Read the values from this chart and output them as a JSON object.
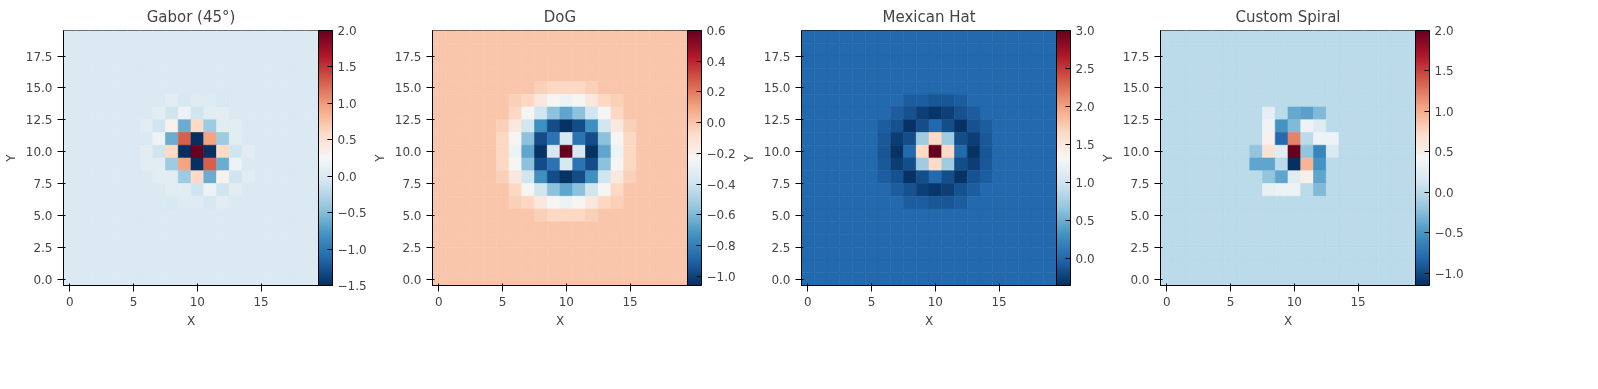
{
  "chart_data": [
    {
      "type": "heatmap",
      "title": "Gabor (45°)",
      "xlabel": "X",
      "ylabel": "Y",
      "xlim": [
        -0.5,
        19.5
      ],
      "ylim": [
        -0.5,
        19.5
      ],
      "xticks": [
        0,
        5,
        10,
        15
      ],
      "yticks": [
        {
          "value": 0,
          "label": "0.0"
        },
        2.5,
        {
          "value": 5,
          "label": "5.0"
        },
        7.5,
        {
          "value": 10,
          "label": "10.0"
        },
        12.5,
        {
          "value": 15,
          "label": "15.0"
        },
        17.5
      ],
      "clim": [
        -1.5,
        2.0
      ],
      "cticks": [
        {
          "value": -1.5,
          "label": "−1.5"
        },
        {
          "value": -1.0,
          "label": "−1.0"
        },
        {
          "value": -0.5,
          "label": "−0.5"
        },
        {
          "value": 0.0,
          "label": "0.0"
        },
        0.5,
        {
          "value": 1.0,
          "label": "1.0"
        },
        1.5,
        {
          "value": 2.0,
          "label": "2.0"
        }
      ],
      "cells": [
        [
          0,
          0,
          0,
          0,
          0,
          0,
          0,
          0,
          0,
          0,
          0,
          0,
          0,
          0,
          0,
          0,
          0,
          0,
          0,
          0
        ],
        [
          0,
          0,
          0,
          0,
          0,
          0,
          0,
          0,
          0,
          0,
          0,
          0,
          0,
          0,
          0,
          0,
          0,
          0,
          0,
          0
        ],
        [
          0,
          0,
          0,
          0,
          0,
          0,
          0,
          0,
          0,
          0,
          0,
          0,
          0,
          0,
          0,
          0,
          0,
          0,
          0,
          0
        ],
        [
          0,
          0,
          0,
          0,
          0,
          0,
          0,
          0,
          0,
          0,
          0,
          0,
          0,
          0,
          0,
          0,
          0,
          0,
          0,
          0
        ],
        [
          0,
          0,
          0,
          0,
          0,
          0,
          0,
          0,
          0,
          0,
          0,
          0,
          0,
          0,
          0,
          0,
          0,
          0,
          0,
          0
        ],
        [
          0,
          0,
          0,
          0,
          0,
          0,
          0,
          0,
          0.05,
          -0.05,
          0.03,
          0.03,
          -0.03,
          0,
          0,
          0,
          0,
          0,
          0,
          0
        ],
        [
          0,
          0,
          0,
          0,
          0,
          0,
          0,
          0.05,
          -0.1,
          0.15,
          -0.1,
          0.05,
          0.06,
          -0.02,
          0,
          0,
          0,
          0,
          0,
          0
        ],
        [
          0,
          0,
          0,
          0,
          0,
          0,
          0.05,
          -0.1,
          0.32,
          -0.62,
          0.6,
          -0.38,
          0.05,
          0.05,
          -0.02,
          0,
          0,
          0,
          0,
          0
        ],
        [
          0,
          0,
          0,
          0,
          0,
          0,
          -0.02,
          0.15,
          -0.62,
          1.3,
          -1.5,
          0.95,
          -0.38,
          0.05,
          0,
          0,
          0,
          0,
          0,
          0
        ],
        [
          0,
          0,
          0,
          0,
          0,
          0,
          0.05,
          -0.1,
          0.6,
          -1.5,
          2.0,
          -1.5,
          0.6,
          -0.1,
          0.05,
          0,
          0,
          0,
          0,
          0
        ],
        [
          0,
          0,
          0,
          0,
          0,
          0,
          0.05,
          0.05,
          -0.38,
          0.95,
          -1.5,
          1.3,
          -0.62,
          0.15,
          -0.02,
          0,
          0,
          0,
          0,
          0
        ],
        [
          0,
          0,
          0,
          0,
          0,
          0,
          -0.02,
          0.05,
          0.05,
          -0.38,
          0.6,
          -0.62,
          0.32,
          -0.1,
          0.05,
          0,
          0,
          0,
          0,
          0
        ],
        [
          0,
          0,
          0,
          0,
          0,
          0,
          0,
          -0.02,
          0.05,
          0.05,
          -0.1,
          0.15,
          -0.1,
          0.05,
          0,
          0,
          0,
          0,
          0,
          0
        ],
        [
          0,
          0,
          0,
          0,
          0,
          0,
          0,
          0,
          -0.03,
          0.03,
          0.03,
          -0.05,
          0.05,
          0,
          0,
          0,
          0,
          0,
          0,
          0
        ],
        [
          0,
          0,
          0,
          0,
          0,
          0,
          0,
          0,
          0,
          0,
          0,
          0,
          0,
          0,
          0,
          0,
          0,
          0,
          0,
          0
        ],
        [
          0,
          0,
          0,
          0,
          0,
          0,
          0,
          0,
          0,
          0,
          0,
          0,
          0,
          0,
          0,
          0,
          0,
          0,
          0,
          0
        ],
        [
          0,
          0,
          0,
          0,
          0,
          0,
          0,
          0,
          0,
          0,
          0,
          0,
          0,
          0,
          0,
          0,
          0,
          0,
          0,
          0
        ],
        [
          0,
          0,
          0,
          0,
          0,
          0,
          0,
          0,
          0,
          0,
          0,
          0,
          0,
          0,
          0,
          0,
          0,
          0,
          0,
          0
        ],
        [
          0,
          0,
          0,
          0,
          0,
          0,
          0,
          0,
          0,
          0,
          0,
          0,
          0,
          0,
          0,
          0,
          0,
          0,
          0,
          0
        ],
        [
          0,
          0,
          0,
          0,
          0,
          0,
          0,
          0,
          0,
          0,
          0,
          0,
          0,
          0,
          0,
          0,
          0,
          0,
          0,
          0
        ]
      ]
    },
    {
      "type": "heatmap",
      "title": "DoG",
      "xlabel": "X",
      "ylabel": "Y",
      "xlim": [
        -0.5,
        19.5
      ],
      "ylim": [
        -0.5,
        19.5
      ],
      "xticks": [
        0,
        5,
        10,
        15
      ],
      "yticks": [
        {
          "value": 0,
          "label": "0.0"
        },
        2.5,
        {
          "value": 5,
          "label": "5.0"
        },
        7.5,
        {
          "value": 10,
          "label": "10.0"
        },
        12.5,
        {
          "value": 15,
          "label": "15.0"
        },
        17.5
      ],
      "clim": [
        -1.06,
        0.6
      ],
      "cticks": [
        {
          "value": -1.0,
          "label": "−1.0"
        },
        {
          "value": -0.8,
          "label": "−0.8"
        },
        {
          "value": -0.6,
          "label": "−0.6"
        },
        {
          "value": -0.4,
          "label": "−0.4"
        },
        {
          "value": -0.2,
          "label": "−0.2"
        },
        {
          "value": 0.0,
          "label": "0.0"
        },
        0.2,
        0.4,
        0.6
      ],
      "cells": [
        [
          0,
          0,
          0,
          0,
          0,
          0,
          0,
          0,
          0,
          0,
          0,
          0,
          0,
          0,
          0,
          0,
          0,
          0,
          0,
          0
        ],
        [
          0,
          0,
          0,
          0,
          0,
          0,
          0,
          0,
          0,
          0,
          0,
          0,
          0,
          0,
          0,
          0,
          0,
          0,
          0,
          0
        ],
        [
          0,
          0,
          0,
          0,
          0,
          0,
          0,
          0,
          0,
          0,
          0,
          0,
          0,
          0,
          0,
          0,
          0,
          0,
          0,
          0
        ],
        [
          0,
          0,
          0,
          0,
          0,
          0,
          0,
          0,
          0,
          0,
          0,
          0,
          0,
          0,
          0,
          0,
          0,
          0,
          0,
          0
        ],
        [
          0,
          0,
          0,
          0,
          0,
          0,
          0,
          0,
          -0.03,
          -0.06,
          -0.06,
          -0.06,
          -0.03,
          0,
          0,
          0,
          0,
          0,
          0,
          0
        ],
        [
          0,
          0,
          0,
          0,
          0,
          0,
          -0.03,
          -0.06,
          -0.14,
          -0.22,
          -0.27,
          -0.22,
          -0.14,
          -0.06,
          -0.03,
          0,
          0,
          0,
          0,
          0
        ],
        [
          0,
          0,
          0,
          0,
          0,
          0,
          -0.06,
          -0.22,
          -0.39,
          -0.57,
          -0.67,
          -0.57,
          -0.39,
          -0.22,
          -0.06,
          0,
          0,
          0,
          0,
          0
        ],
        [
          0,
          0,
          0,
          0,
          0,
          -0.03,
          -0.14,
          -0.39,
          -0.74,
          -0.97,
          -1.05,
          -0.97,
          -0.74,
          -0.39,
          -0.14,
          -0.03,
          0,
          0,
          0,
          0
        ],
        [
          0,
          0,
          0,
          0,
          0,
          -0.06,
          -0.22,
          -0.57,
          -0.97,
          -0.84,
          -0.37,
          -0.84,
          -0.97,
          -0.57,
          -0.22,
          -0.06,
          0,
          0,
          0,
          0
        ],
        [
          0,
          0,
          0,
          0,
          0,
          -0.06,
          -0.27,
          -0.67,
          -1.05,
          -0.37,
          0.6,
          -0.37,
          -1.05,
          -0.67,
          -0.27,
          -0.06,
          0,
          0,
          0,
          0
        ],
        [
          0,
          0,
          0,
          0,
          0,
          -0.06,
          -0.22,
          -0.57,
          -0.97,
          -0.84,
          -0.37,
          -0.84,
          -0.97,
          -0.57,
          -0.22,
          -0.06,
          0,
          0,
          0,
          0
        ],
        [
          0,
          0,
          0,
          0,
          0,
          -0.03,
          -0.14,
          -0.39,
          -0.74,
          -0.97,
          -1.05,
          -0.97,
          -0.74,
          -0.39,
          -0.14,
          -0.03,
          0,
          0,
          0,
          0
        ],
        [
          0,
          0,
          0,
          0,
          0,
          0,
          -0.06,
          -0.22,
          -0.39,
          -0.57,
          -0.67,
          -0.57,
          -0.39,
          -0.22,
          -0.06,
          0,
          0,
          0,
          0,
          0
        ],
        [
          0,
          0,
          0,
          0,
          0,
          0,
          -0.03,
          -0.06,
          -0.14,
          -0.22,
          -0.27,
          -0.22,
          -0.14,
          -0.06,
          -0.03,
          0,
          0,
          0,
          0,
          0
        ],
        [
          0,
          0,
          0,
          0,
          0,
          0,
          0,
          0,
          -0.03,
          -0.06,
          -0.06,
          -0.06,
          -0.03,
          0,
          0,
          0,
          0,
          0,
          0,
          0
        ],
        [
          0,
          0,
          0,
          0,
          0,
          0,
          0,
          0,
          0,
          0,
          0,
          0,
          0,
          0,
          0,
          0,
          0,
          0,
          0,
          0
        ],
        [
          0,
          0,
          0,
          0,
          0,
          0,
          0,
          0,
          0,
          0,
          0,
          0,
          0,
          0,
          0,
          0,
          0,
          0,
          0,
          0
        ],
        [
          0,
          0,
          0,
          0,
          0,
          0,
          0,
          0,
          0,
          0,
          0,
          0,
          0,
          0,
          0,
          0,
          0,
          0,
          0,
          0
        ],
        [
          0,
          0,
          0,
          0,
          0,
          0,
          0,
          0,
          0,
          0,
          0,
          0,
          0,
          0,
          0,
          0,
          0,
          0,
          0,
          0
        ],
        [
          0,
          0,
          0,
          0,
          0,
          0,
          0,
          0,
          0,
          0,
          0,
          0,
          0,
          0,
          0,
          0,
          0,
          0,
          0,
          0
        ]
      ]
    },
    {
      "type": "heatmap",
      "title": "Mexican Hat",
      "xlabel": "X",
      "ylabel": "Y",
      "xlim": [
        -0.5,
        19.5
      ],
      "ylim": [
        -0.5,
        19.5
      ],
      "xticks": [
        0,
        5,
        10,
        15
      ],
      "yticks": [
        {
          "value": 0,
          "label": "0.0"
        },
        2.5,
        {
          "value": 5,
          "label": "5.0"
        },
        7.5,
        {
          "value": 10,
          "label": "10.0"
        },
        12.5,
        {
          "value": 15,
          "label": "15.0"
        },
        17.5
      ],
      "clim": [
        -0.36,
        3.0
      ],
      "cticks": [
        {
          "value": 0.0,
          "label": "0.0"
        },
        0.5,
        {
          "value": 1.0,
          "label": "1.0"
        },
        1.5,
        {
          "value": 2.0,
          "label": "2.0"
        },
        2.5,
        {
          "value": 3.0,
          "label": "3.0"
        }
      ],
      "cells": [
        [
          0,
          0,
          0,
          0,
          0,
          0,
          0,
          0,
          0,
          0,
          0,
          0,
          0,
          0,
          0,
          0,
          0,
          0,
          0,
          0
        ],
        [
          0,
          0,
          0,
          0,
          0,
          0,
          0,
          0,
          0,
          0,
          0,
          0,
          0,
          0,
          0,
          0,
          0,
          0,
          0,
          0
        ],
        [
          0,
          0,
          0,
          0,
          0,
          0,
          0,
          0,
          0,
          0,
          0,
          0,
          0,
          0,
          0,
          0,
          0,
          0,
          0,
          0
        ],
        [
          0,
          0,
          0,
          0,
          0,
          0,
          0,
          0,
          0,
          0,
          0,
          0,
          0,
          0,
          0,
          0,
          0,
          0,
          0,
          0
        ],
        [
          0,
          0,
          0,
          0,
          0,
          0,
          0,
          0,
          0,
          0,
          0,
          0,
          0,
          0,
          0,
          0,
          0,
          0,
          0,
          0
        ],
        [
          0,
          0,
          0,
          0,
          0,
          0,
          0,
          0,
          -0.08,
          -0.08,
          -0.12,
          -0.12,
          -0.08,
          0,
          0,
          0,
          0,
          0,
          0,
          0
        ],
        [
          0,
          0,
          0,
          0,
          0,
          0,
          0,
          -0.08,
          -0.15,
          -0.26,
          -0.32,
          -0.26,
          -0.15,
          -0.08,
          0,
          0,
          0,
          0,
          0,
          0
        ],
        [
          0,
          0,
          0,
          0,
          0,
          0,
          -0.08,
          -0.15,
          -0.34,
          -0.17,
          0,
          -0.17,
          -0.34,
          -0.15,
          -0.08,
          0,
          0,
          0,
          0,
          0
        ],
        [
          0,
          0,
          0,
          0,
          0,
          0,
          -0.1,
          -0.28,
          -0.17,
          0.72,
          1.66,
          0.72,
          -0.17,
          -0.28,
          -0.1,
          0,
          0,
          0,
          0,
          0
        ],
        [
          0,
          0,
          0,
          0,
          0,
          0,
          -0.12,
          -0.34,
          0,
          1.66,
          3.0,
          1.66,
          0,
          -0.34,
          -0.12,
          0,
          0,
          0,
          0,
          0
        ],
        [
          0,
          0,
          0,
          0,
          0,
          0,
          -0.1,
          -0.28,
          -0.17,
          0.72,
          1.66,
          0.72,
          -0.17,
          -0.28,
          -0.1,
          0,
          0,
          0,
          0,
          0
        ],
        [
          0,
          0,
          0,
          0,
          0,
          0,
          -0.08,
          -0.15,
          -0.34,
          -0.17,
          0,
          -0.17,
          -0.34,
          -0.15,
          -0.08,
          0,
          0,
          0,
          0,
          0
        ],
        [
          0,
          0,
          0,
          0,
          0,
          0,
          0,
          -0.08,
          -0.15,
          -0.26,
          -0.32,
          -0.26,
          -0.15,
          -0.08,
          0,
          0,
          0,
          0,
          0,
          0
        ],
        [
          0,
          0,
          0,
          0,
          0,
          0,
          0,
          0,
          -0.08,
          -0.08,
          -0.12,
          -0.12,
          -0.08,
          0,
          0,
          0,
          0,
          0,
          0,
          0
        ],
        [
          0,
          0,
          0,
          0,
          0,
          0,
          0,
          0,
          0,
          0,
          0,
          0,
          0,
          0,
          0,
          0,
          0,
          0,
          0,
          0
        ],
        [
          0,
          0,
          0,
          0,
          0,
          0,
          0,
          0,
          0,
          0,
          0,
          0,
          0,
          0,
          0,
          0,
          0,
          0,
          0,
          0
        ],
        [
          0,
          0,
          0,
          0,
          0,
          0,
          0,
          0,
          0,
          0,
          0,
          0,
          0,
          0,
          0,
          0,
          0,
          0,
          0,
          0
        ],
        [
          0,
          0,
          0,
          0,
          0,
          0,
          0,
          0,
          0,
          0,
          0,
          0,
          0,
          0,
          0,
          0,
          0,
          0,
          0,
          0
        ],
        [
          0,
          0,
          0,
          0,
          0,
          0,
          0,
          0,
          0,
          0,
          0,
          0,
          0,
          0,
          0,
          0,
          0,
          0,
          0,
          0
        ],
        [
          0,
          0,
          0,
          0,
          0,
          0,
          0,
          0,
          0,
          0,
          0,
          0,
          0,
          0,
          0,
          0,
          0,
          0,
          0,
          0
        ]
      ]
    },
    {
      "type": "heatmap",
      "title": "Custom Spiral",
      "xlabel": "X",
      "ylabel": "Y",
      "xlim": [
        -0.5,
        19.5
      ],
      "ylim": [
        -0.5,
        19.5
      ],
      "xticks": [
        0,
        5,
        10,
        15
      ],
      "yticks": [
        {
          "value": 0,
          "label": "0.0"
        },
        2.5,
        {
          "value": 5,
          "label": "5.0"
        },
        7.5,
        {
          "value": 10,
          "label": "10.0"
        },
        12.5,
        {
          "value": 15,
          "label": "15.0"
        },
        17.5
      ],
      "clim": [
        -1.15,
        2.0
      ],
      "cticks": [
        {
          "value": -1.0,
          "label": "−1.0"
        },
        {
          "value": -0.5,
          "label": "−0.5"
        },
        {
          "value": 0.0,
          "label": "0.0"
        },
        0.5,
        {
          "value": 1.0,
          "label": "1.0"
        },
        1.5,
        {
          "value": 2.0,
          "label": "2.0"
        }
      ],
      "cells": [
        [
          0,
          0,
          0,
          0,
          0,
          0,
          0,
          0,
          0,
          0,
          0,
          0,
          0,
          0,
          0,
          0,
          0,
          0,
          0,
          0
        ],
        [
          0,
          0,
          0,
          0,
          0,
          0,
          0,
          0,
          0,
          0,
          0,
          0,
          0,
          0,
          0,
          0,
          0,
          0,
          0,
          0
        ],
        [
          0,
          0,
          0,
          0,
          0,
          0,
          0,
          0,
          0,
          0,
          0,
          0,
          0,
          0,
          0,
          0,
          0,
          0,
          0,
          0
        ],
        [
          0,
          0,
          0,
          0,
          0,
          0,
          0,
          0,
          0,
          0,
          0,
          0,
          0,
          0,
          0,
          0,
          0,
          0,
          0,
          0
        ],
        [
          0,
          0,
          0,
          0,
          0,
          0,
          0,
          0,
          0,
          0,
          0,
          0,
          0,
          0,
          0,
          0,
          0,
          0,
          0,
          0
        ],
        [
          0,
          0,
          0,
          0,
          0,
          0,
          0,
          0,
          0,
          0,
          0,
          0,
          0,
          0,
          0,
          0,
          0,
          0,
          0,
          0
        ],
        [
          0,
          0,
          0,
          0,
          0,
          0,
          0,
          0,
          0.27,
          0,
          -0.38,
          -0.43,
          -0.27,
          0,
          0,
          0,
          0,
          0,
          0,
          0
        ],
        [
          0,
          0,
          0,
          0,
          0,
          0,
          0,
          0,
          0.36,
          -0.52,
          -0.27,
          0.33,
          0.22,
          0,
          0,
          0,
          0,
          0,
          0,
          0
        ],
        [
          0,
          0,
          0,
          0,
          0,
          0,
          0,
          0,
          0.5,
          -0.8,
          1.21,
          0,
          0.33,
          0.33,
          0,
          0,
          0,
          0,
          0,
          0
        ],
        [
          0,
          0,
          0,
          0,
          0,
          0,
          0,
          -0.2,
          0.65,
          0.25,
          2.0,
          -0.2,
          -0.61,
          0.2,
          0,
          0,
          0,
          0,
          0,
          0
        ],
        [
          0,
          0,
          0,
          0,
          0,
          0,
          0,
          -0.4,
          -0.4,
          0,
          -1.15,
          0.96,
          -0.52,
          0,
          0,
          0,
          0,
          0,
          0,
          0
        ],
        [
          0,
          0,
          0,
          0,
          0,
          0,
          0,
          0,
          -0.2,
          -0.4,
          0.25,
          0.52,
          -0.4,
          0,
          0,
          0,
          0,
          0,
          0,
          0
        ],
        [
          0,
          0,
          0,
          0,
          0,
          0,
          0,
          0,
          0.3,
          0.34,
          0.34,
          0,
          -0.27,
          0,
          0,
          0,
          0,
          0,
          0,
          0
        ],
        [
          0,
          0,
          0,
          0,
          0,
          0,
          0,
          0,
          0,
          0,
          0,
          0,
          0,
          0,
          0,
          0,
          0,
          0,
          0,
          0
        ],
        [
          0,
          0,
          0,
          0,
          0,
          0,
          0,
          0,
          0,
          0,
          0,
          0,
          0,
          0,
          0,
          0,
          0,
          0,
          0,
          0
        ],
        [
          0,
          0,
          0,
          0,
          0,
          0,
          0,
          0,
          0,
          0,
          0,
          0,
          0,
          0,
          0,
          0,
          0,
          0,
          0,
          0
        ],
        [
          0,
          0,
          0,
          0,
          0,
          0,
          0,
          0,
          0,
          0,
          0,
          0,
          0,
          0,
          0,
          0,
          0,
          0,
          0,
          0
        ],
        [
          0,
          0,
          0,
          0,
          0,
          0,
          0,
          0,
          0,
          0,
          0,
          0,
          0,
          0,
          0,
          0,
          0,
          0,
          0,
          0
        ],
        [
          0,
          0,
          0,
          0,
          0,
          0,
          0,
          0,
          0,
          0,
          0,
          0,
          0,
          0,
          0,
          0,
          0,
          0,
          0,
          0
        ],
        [
          0,
          0,
          0,
          0,
          0,
          0,
          0,
          0,
          0,
          0,
          0,
          0,
          0,
          0,
          0,
          0,
          0,
          0,
          0,
          0
        ]
      ]
    }
  ]
}
